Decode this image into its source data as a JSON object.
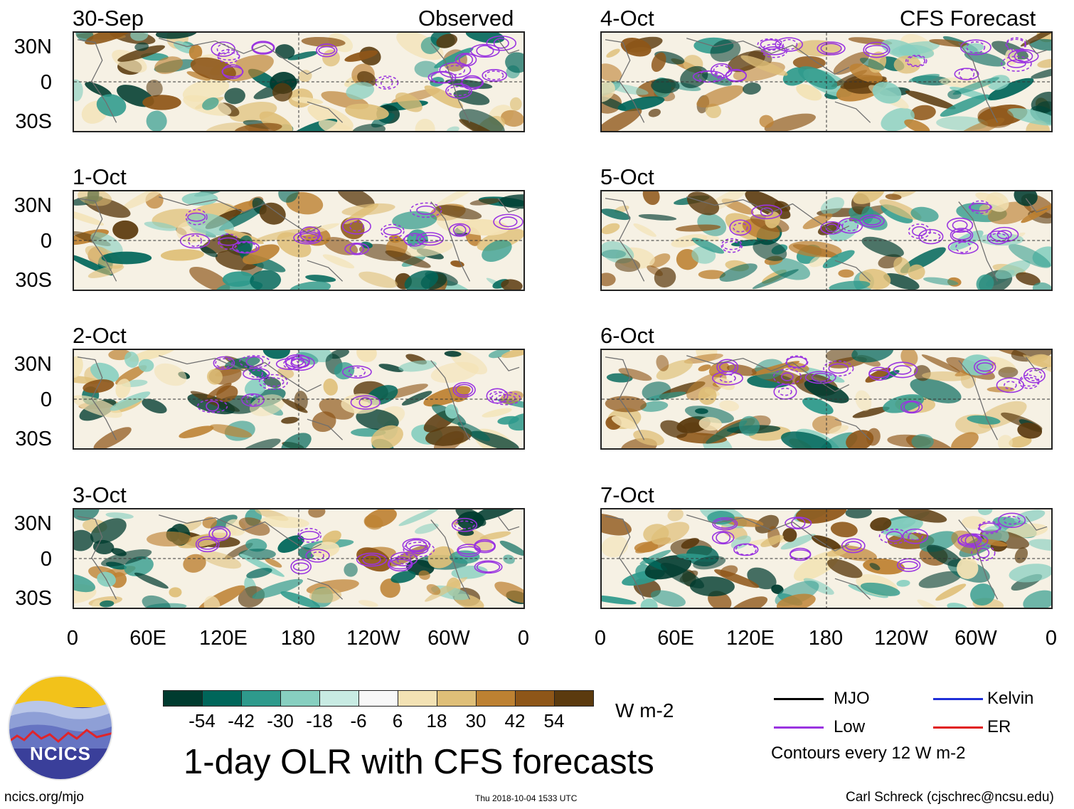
{
  "chart_data": {
    "type": "heatmap",
    "title": "1-day OLR with CFS forecasts",
    "variable": "OLR anomaly",
    "units": "W m-2",
    "longitude_ticks": [
      "0",
      "60E",
      "120E",
      "180",
      "120W",
      "60W",
      "0"
    ],
    "latitude_ticks": [
      "30N",
      "0",
      "30S"
    ],
    "columns": [
      {
        "header": "Observed",
        "panels": [
          "30-Sep",
          "1-Oct",
          "2-Oct",
          "3-Oct"
        ]
      },
      {
        "header": "CFS Forecast",
        "panels": [
          "4-Oct",
          "5-Oct",
          "6-Oct",
          "7-Oct"
        ]
      }
    ],
    "colorbar": {
      "ticks": [
        "-54",
        "-42",
        "-30",
        "-18",
        "-6",
        "6",
        "18",
        "30",
        "42",
        "54"
      ],
      "colors": [
        "#003b2f",
        "#00665a",
        "#2e9a8c",
        "#87cfc0",
        "#c8ebe3",
        "#f8f8f8",
        "#f3e2b4",
        "#dfbf78",
        "#bd8132",
        "#8e5618",
        "#5b3a0e"
      ]
    },
    "contour_legend": [
      {
        "label": "MJO",
        "color": "#000000"
      },
      {
        "label": "Kelvin",
        "color": "#1f2fd8"
      },
      {
        "label": "Low",
        "color": "#9a34e0"
      },
      {
        "label": "ER",
        "color": "#e01818"
      }
    ],
    "contour_interval_note": "Contours every 12 W m-2"
  },
  "footer": {
    "logo_text": "NCICS",
    "url": "ncics.org/mjo",
    "timestamp": "Thu 2018-10-04 1533 UTC",
    "credit": "Carl Schreck (cjschrec@ncsu.edu)"
  }
}
